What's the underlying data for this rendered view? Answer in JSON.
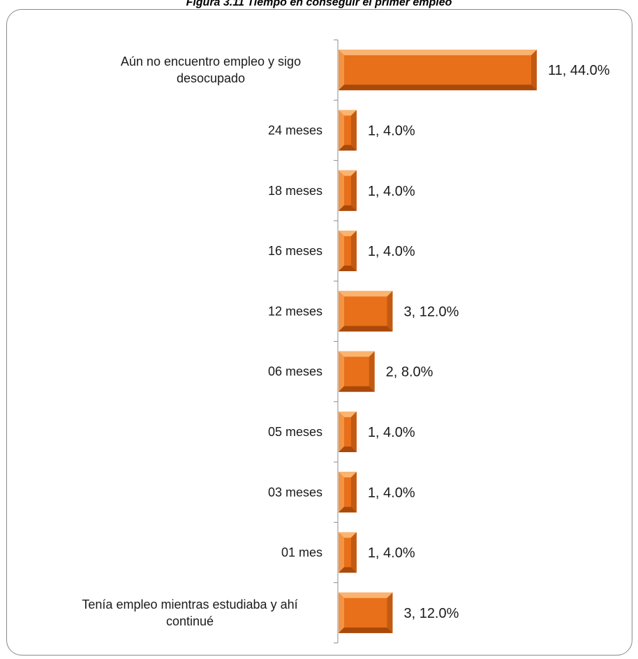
{
  "figure": {
    "caption": "Figura 3.11 Tiempo en conseguir el primer empleo"
  },
  "chart_data": {
    "type": "bar",
    "orientation": "horizontal",
    "categories": [
      [
        "Aún no encuentro empleo y sigo",
        "desocupado"
      ],
      [
        "24 meses"
      ],
      [
        "18 meses"
      ],
      [
        "16 meses"
      ],
      [
        "12 meses"
      ],
      [
        "06 meses"
      ],
      [
        "05 meses"
      ],
      [
        "03 meses"
      ],
      [
        "01 mes"
      ],
      [
        "Tenía empleo mientras estudiaba y ahí",
        "continué"
      ]
    ],
    "values": [
      11,
      1,
      1,
      1,
      3,
      2,
      1,
      1,
      1,
      3
    ],
    "percentages": [
      44.0,
      4.0,
      4.0,
      4.0,
      12.0,
      8.0,
      4.0,
      4.0,
      4.0,
      12.0
    ],
    "data_labels": [
      "11, 44.0%",
      "1, 4.0%",
      "1, 4.0%",
      "1, 4.0%",
      "3, 12.0%",
      "2, 8.0%",
      "1, 4.0%",
      "1, 4.0%",
      "1, 4.0%",
      "3, 12.0%"
    ],
    "bar_color": "#E8701A",
    "bar_highlight": "#F8A050",
    "bar_shadow": "#9A4208",
    "grid": false,
    "legend": "none"
  }
}
